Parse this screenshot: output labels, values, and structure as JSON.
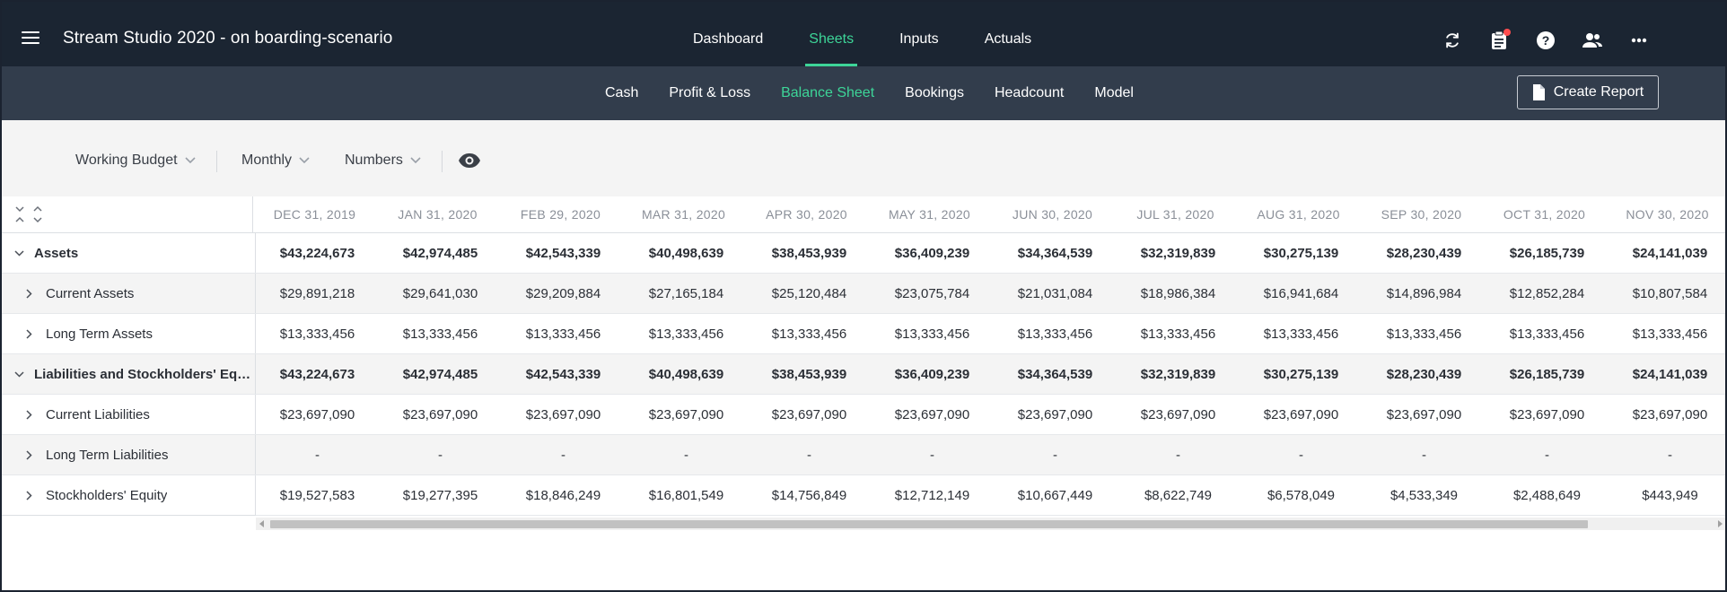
{
  "header": {
    "title": "Stream Studio 2020 - on boarding-scenario",
    "nav": [
      {
        "label": "Dashboard",
        "active": false
      },
      {
        "label": "Sheets",
        "active": true
      },
      {
        "label": "Inputs",
        "active": false
      },
      {
        "label": "Actuals",
        "active": false
      }
    ],
    "icons": [
      "sync-icon",
      "clipboard-icon",
      "help-icon",
      "users-icon",
      "more-icon"
    ]
  },
  "subnav": {
    "items": [
      {
        "label": "Cash",
        "active": false
      },
      {
        "label": "Profit & Loss",
        "active": false
      },
      {
        "label": "Balance Sheet",
        "active": true
      },
      {
        "label": "Bookings",
        "active": false
      },
      {
        "label": "Headcount",
        "active": false
      },
      {
        "label": "Model",
        "active": false
      }
    ],
    "create_report_label": "Create Report"
  },
  "filters": {
    "budget": "Working Budget",
    "period": "Monthly",
    "format": "Numbers"
  },
  "grid": {
    "columns": [
      "DEC 31, 2019",
      "JAN 31, 2020",
      "FEB 29, 2020",
      "MAR 31, 2020",
      "APR 30, 2020",
      "MAY 31, 2020",
      "JUN 30, 2020",
      "JUL 31, 2020",
      "AUG 31, 2020",
      "SEP 30, 2020",
      "OCT 31, 2020",
      "NOV 30, 2020"
    ],
    "rows": [
      {
        "label": "Assets",
        "level": 0,
        "expanded": true,
        "bold": true,
        "values": [
          "$43,224,673",
          "$42,974,485",
          "$42,543,339",
          "$40,498,639",
          "$38,453,939",
          "$36,409,239",
          "$34,364,539",
          "$32,319,839",
          "$30,275,139",
          "$28,230,439",
          "$26,185,739",
          "$24,141,039"
        ]
      },
      {
        "label": "Current Assets",
        "level": 1,
        "expanded": false,
        "bold": false,
        "values": [
          "$29,891,218",
          "$29,641,030",
          "$29,209,884",
          "$27,165,184",
          "$25,120,484",
          "$23,075,784",
          "$21,031,084",
          "$18,986,384",
          "$16,941,684",
          "$14,896,984",
          "$12,852,284",
          "$10,807,584"
        ]
      },
      {
        "label": "Long Term Assets",
        "level": 1,
        "expanded": false,
        "bold": false,
        "values": [
          "$13,333,456",
          "$13,333,456",
          "$13,333,456",
          "$13,333,456",
          "$13,333,456",
          "$13,333,456",
          "$13,333,456",
          "$13,333,456",
          "$13,333,456",
          "$13,333,456",
          "$13,333,456",
          "$13,333,456"
        ]
      },
      {
        "label": "Liabilities and Stockholders' Equity",
        "level": 0,
        "expanded": true,
        "bold": true,
        "values": [
          "$43,224,673",
          "$42,974,485",
          "$42,543,339",
          "$40,498,639",
          "$38,453,939",
          "$36,409,239",
          "$34,364,539",
          "$32,319,839",
          "$30,275,139",
          "$28,230,439",
          "$26,185,739",
          "$24,141,039"
        ]
      },
      {
        "label": "Current Liabilities",
        "level": 1,
        "expanded": false,
        "bold": false,
        "values": [
          "$23,697,090",
          "$23,697,090",
          "$23,697,090",
          "$23,697,090",
          "$23,697,090",
          "$23,697,090",
          "$23,697,090",
          "$23,697,090",
          "$23,697,090",
          "$23,697,090",
          "$23,697,090",
          "$23,697,090"
        ]
      },
      {
        "label": "Long Term Liabilities",
        "level": 1,
        "expanded": false,
        "bold": false,
        "values": [
          "-",
          "-",
          "-",
          "-",
          "-",
          "-",
          "-",
          "-",
          "-",
          "-",
          "-",
          "-"
        ]
      },
      {
        "label": "Stockholders' Equity",
        "level": 1,
        "expanded": false,
        "bold": false,
        "values": [
          "$19,527,583",
          "$19,277,395",
          "$18,846,249",
          "$16,801,549",
          "$14,756,849",
          "$12,712,149",
          "$10,667,449",
          "$8,622,749",
          "$6,578,049",
          "$4,533,349",
          "$2,488,649",
          "$443,949"
        ]
      }
    ]
  },
  "colors": {
    "topbar": "#1b2532",
    "subbar": "#323d4c",
    "accent": "#3dd598",
    "badge": "#ff4d4f"
  }
}
